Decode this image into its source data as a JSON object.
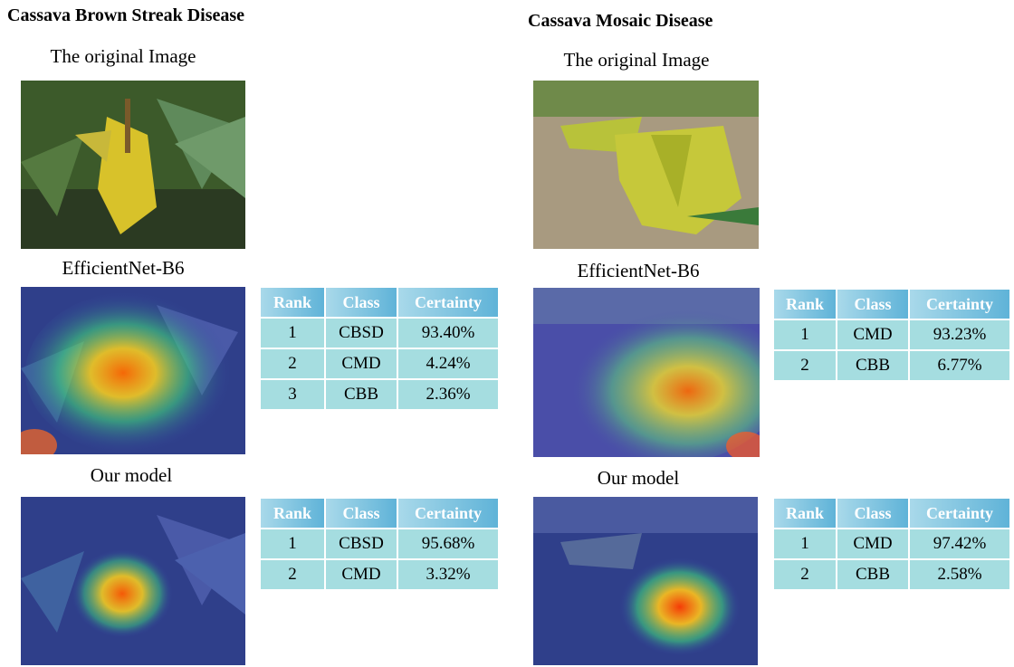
{
  "left": {
    "title": "Cassava Brown Streak Disease",
    "original_caption": "The original Image",
    "effnet_caption": "EfficientNet-B6",
    "ours_caption": "Our model",
    "table_headers": [
      "Rank",
      "Class",
      "Certainty"
    ],
    "effnet_rows": [
      {
        "rank": "1",
        "class": "CBSD",
        "certainty": "93.40%"
      },
      {
        "rank": "2",
        "class": "CMD",
        "certainty": "4.24%"
      },
      {
        "rank": "3",
        "class": "CBB",
        "certainty": "2.36%"
      }
    ],
    "ours_rows": [
      {
        "rank": "1",
        "class": "CBSD",
        "certainty": "95.68%"
      },
      {
        "rank": "2",
        "class": "CMD",
        "certainty": "3.32%"
      }
    ]
  },
  "right": {
    "title": "Cassava Mosaic Disease",
    "original_caption": "The original Image",
    "effnet_caption": "EfficientNet-B6",
    "ours_caption": "Our model",
    "table_headers": [
      "Rank",
      "Class",
      "Certainty"
    ],
    "effnet_rows": [
      {
        "rank": "1",
        "class": "CMD",
        "certainty": "93.23%"
      },
      {
        "rank": "2",
        "class": "CBB",
        "certainty": "6.77%"
      }
    ],
    "ours_rows": [
      {
        "rank": "1",
        "class": "CMD",
        "certainty": "97.42%"
      },
      {
        "rank": "2",
        "class": "CBB",
        "certainty": "2.58%"
      }
    ]
  }
}
